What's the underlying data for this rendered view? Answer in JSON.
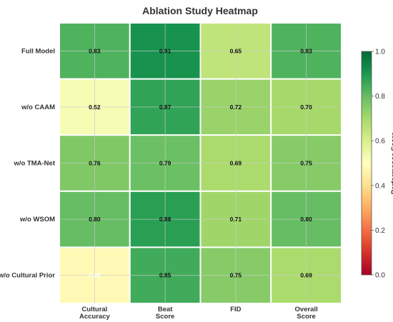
{
  "chart_data": {
    "type": "heatmap",
    "title": "Ablation Study Heatmap",
    "rows": [
      "Full Model",
      "w/o CAAM",
      "w/o TMA-Net",
      "w/o WSOM",
      "w/o Cultural Prior"
    ],
    "columns": [
      [
        "Cultural",
        "Accuracy"
      ],
      [
        "Beat",
        "Score"
      ],
      [
        "FID"
      ],
      [
        "Overall",
        "Score"
      ]
    ],
    "values": [
      [
        0.83,
        0.91,
        0.65,
        0.83
      ],
      [
        0.52,
        0.87,
        0.72,
        0.7
      ],
      [
        0.76,
        0.79,
        0.69,
        0.75
      ],
      [
        0.8,
        0.88,
        0.71,
        0.8
      ],
      [
        0.48,
        0.85,
        0.75,
        0.69
      ]
    ],
    "value_labels": [
      [
        "0.83",
        "0.91",
        "0.65",
        "0.83"
      ],
      [
        "0.52",
        "0.87",
        "0.72",
        "0.70"
      ],
      [
        "0.76",
        "0.79",
        "0.69",
        "0.75"
      ],
      [
        "0.80",
        "0.88",
        "0.71",
        "0.80"
      ],
      [
        "0.48",
        "0.85",
        "0.75",
        "0.69"
      ]
    ],
    "colorscale": "RdYlGn",
    "vmin": 0.0,
    "vmax": 1.0,
    "colorbar": {
      "label": "Performance Score",
      "ticks": [
        "0.0",
        "0.2",
        "0.4",
        "0.6",
        "0.8",
        "1.0"
      ]
    },
    "grid": true
  }
}
